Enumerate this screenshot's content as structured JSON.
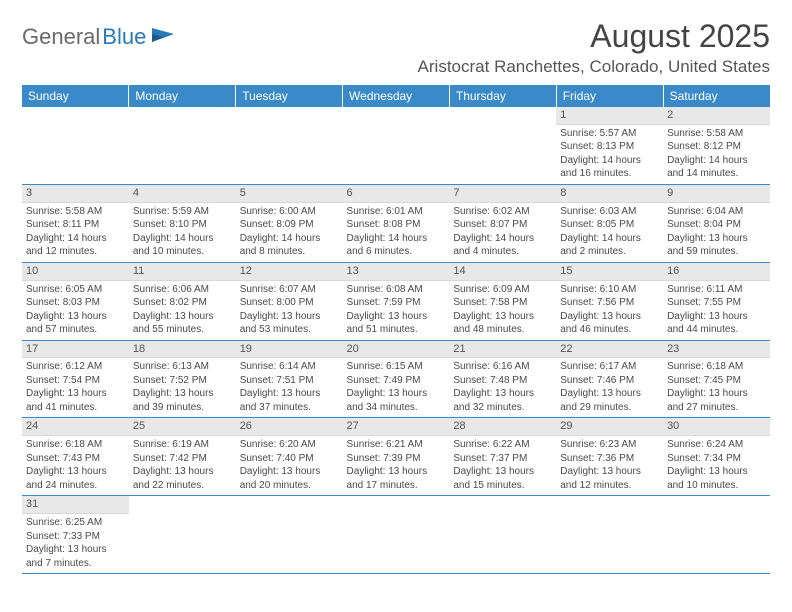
{
  "logo": {
    "part1": "General",
    "part2": "Blue"
  },
  "title": "August 2025",
  "location": "Aristocrat Ranchettes, Colorado, United States",
  "colors": {
    "header_bg": "#3a8ac9",
    "header_text": "#ffffff",
    "daynum_bg": "#e8e8e8",
    "border": "#3a8ac9",
    "logo_gray": "#6a6a6a",
    "logo_blue": "#2a7ab8"
  },
  "weekdays": [
    "Sunday",
    "Monday",
    "Tuesday",
    "Wednesday",
    "Thursday",
    "Friday",
    "Saturday"
  ],
  "weeks": [
    [
      null,
      null,
      null,
      null,
      null,
      {
        "n": "1",
        "sunrise": "5:57 AM",
        "sunset": "8:13 PM",
        "daylight": "14 hours and 16 minutes."
      },
      {
        "n": "2",
        "sunrise": "5:58 AM",
        "sunset": "8:12 PM",
        "daylight": "14 hours and 14 minutes."
      }
    ],
    [
      {
        "n": "3",
        "sunrise": "5:58 AM",
        "sunset": "8:11 PM",
        "daylight": "14 hours and 12 minutes."
      },
      {
        "n": "4",
        "sunrise": "5:59 AM",
        "sunset": "8:10 PM",
        "daylight": "14 hours and 10 minutes."
      },
      {
        "n": "5",
        "sunrise": "6:00 AM",
        "sunset": "8:09 PM",
        "daylight": "14 hours and 8 minutes."
      },
      {
        "n": "6",
        "sunrise": "6:01 AM",
        "sunset": "8:08 PM",
        "daylight": "14 hours and 6 minutes."
      },
      {
        "n": "7",
        "sunrise": "6:02 AM",
        "sunset": "8:07 PM",
        "daylight": "14 hours and 4 minutes."
      },
      {
        "n": "8",
        "sunrise": "6:03 AM",
        "sunset": "8:05 PM",
        "daylight": "14 hours and 2 minutes."
      },
      {
        "n": "9",
        "sunrise": "6:04 AM",
        "sunset": "8:04 PM",
        "daylight": "13 hours and 59 minutes."
      }
    ],
    [
      {
        "n": "10",
        "sunrise": "6:05 AM",
        "sunset": "8:03 PM",
        "daylight": "13 hours and 57 minutes."
      },
      {
        "n": "11",
        "sunrise": "6:06 AM",
        "sunset": "8:02 PM",
        "daylight": "13 hours and 55 minutes."
      },
      {
        "n": "12",
        "sunrise": "6:07 AM",
        "sunset": "8:00 PM",
        "daylight": "13 hours and 53 minutes."
      },
      {
        "n": "13",
        "sunrise": "6:08 AM",
        "sunset": "7:59 PM",
        "daylight": "13 hours and 51 minutes."
      },
      {
        "n": "14",
        "sunrise": "6:09 AM",
        "sunset": "7:58 PM",
        "daylight": "13 hours and 48 minutes."
      },
      {
        "n": "15",
        "sunrise": "6:10 AM",
        "sunset": "7:56 PM",
        "daylight": "13 hours and 46 minutes."
      },
      {
        "n": "16",
        "sunrise": "6:11 AM",
        "sunset": "7:55 PM",
        "daylight": "13 hours and 44 minutes."
      }
    ],
    [
      {
        "n": "17",
        "sunrise": "6:12 AM",
        "sunset": "7:54 PM",
        "daylight": "13 hours and 41 minutes."
      },
      {
        "n": "18",
        "sunrise": "6:13 AM",
        "sunset": "7:52 PM",
        "daylight": "13 hours and 39 minutes."
      },
      {
        "n": "19",
        "sunrise": "6:14 AM",
        "sunset": "7:51 PM",
        "daylight": "13 hours and 37 minutes."
      },
      {
        "n": "20",
        "sunrise": "6:15 AM",
        "sunset": "7:49 PM",
        "daylight": "13 hours and 34 minutes."
      },
      {
        "n": "21",
        "sunrise": "6:16 AM",
        "sunset": "7:48 PM",
        "daylight": "13 hours and 32 minutes."
      },
      {
        "n": "22",
        "sunrise": "6:17 AM",
        "sunset": "7:46 PM",
        "daylight": "13 hours and 29 minutes."
      },
      {
        "n": "23",
        "sunrise": "6:18 AM",
        "sunset": "7:45 PM",
        "daylight": "13 hours and 27 minutes."
      }
    ],
    [
      {
        "n": "24",
        "sunrise": "6:18 AM",
        "sunset": "7:43 PM",
        "daylight": "13 hours and 24 minutes."
      },
      {
        "n": "25",
        "sunrise": "6:19 AM",
        "sunset": "7:42 PM",
        "daylight": "13 hours and 22 minutes."
      },
      {
        "n": "26",
        "sunrise": "6:20 AM",
        "sunset": "7:40 PM",
        "daylight": "13 hours and 20 minutes."
      },
      {
        "n": "27",
        "sunrise": "6:21 AM",
        "sunset": "7:39 PM",
        "daylight": "13 hours and 17 minutes."
      },
      {
        "n": "28",
        "sunrise": "6:22 AM",
        "sunset": "7:37 PM",
        "daylight": "13 hours and 15 minutes."
      },
      {
        "n": "29",
        "sunrise": "6:23 AM",
        "sunset": "7:36 PM",
        "daylight": "13 hours and 12 minutes."
      },
      {
        "n": "30",
        "sunrise": "6:24 AM",
        "sunset": "7:34 PM",
        "daylight": "13 hours and 10 minutes."
      }
    ],
    [
      {
        "n": "31",
        "sunrise": "6:25 AM",
        "sunset": "7:33 PM",
        "daylight": "13 hours and 7 minutes."
      },
      null,
      null,
      null,
      null,
      null,
      null
    ]
  ]
}
